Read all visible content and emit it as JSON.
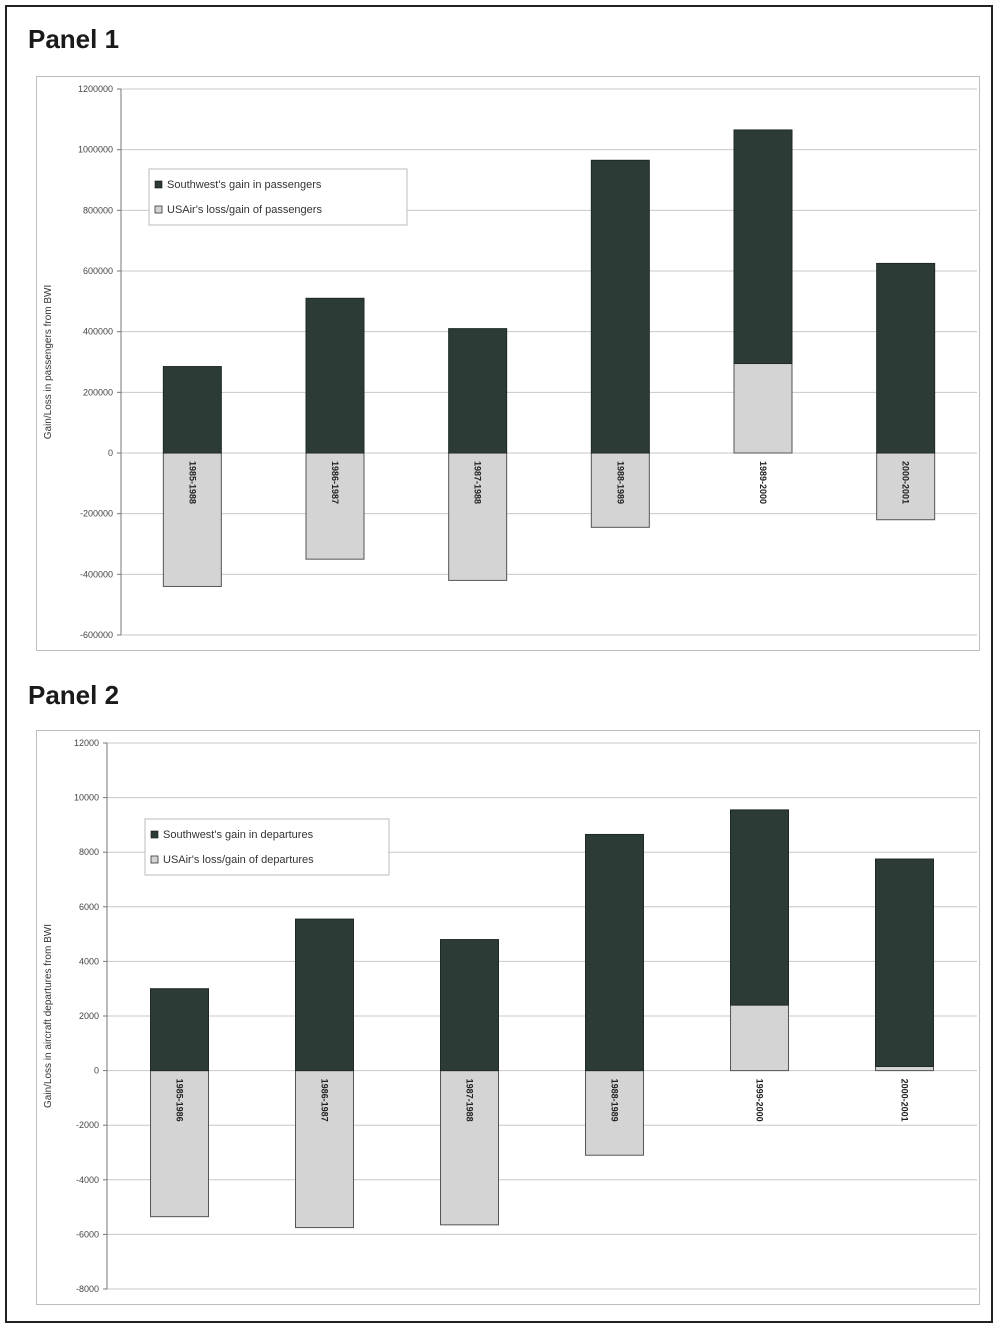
{
  "panels": [
    {
      "title": "Panel 1"
    },
    {
      "title": "Panel 2"
    }
  ],
  "colors": {
    "southwest": "#2d3b37",
    "usair": "#d4d4d4",
    "grid": "#c8c8c8",
    "axis": "#777777"
  },
  "chart_data": [
    {
      "type": "bar",
      "title": "",
      "ylabel": "Gain/Loss in passengers from BWI",
      "ylim": [
        -600000,
        1200000
      ],
      "yticks": [
        "-600000",
        "-400000",
        "-200000",
        "0",
        "200000",
        "400000",
        "600000",
        "800000",
        "1000000",
        "1200000"
      ],
      "categories": [
        "1985-1988",
        "1986-1987",
        "1987-1988",
        "1988-1989",
        "1989-2000",
        "2000-2001"
      ],
      "series": [
        {
          "name": "Southwest's gain in passengers",
          "values": [
            285000,
            510000,
            410000,
            965000,
            1065000,
            625000
          ]
        },
        {
          "name": "USAir's loss/gain of passengers",
          "values": [
            -440000,
            -350000,
            -420000,
            -245000,
            295000,
            -220000
          ]
        }
      ],
      "legend": "top-left",
      "grid": true
    },
    {
      "type": "bar",
      "title": "",
      "ylabel": "Gain/Loss in aircraft departures from BWI",
      "ylim": [
        -8000,
        12000
      ],
      "yticks": [
        "-8000",
        "-6000",
        "-4000",
        "-2000",
        "0",
        "2000",
        "4000",
        "6000",
        "8000",
        "10000",
        "12000"
      ],
      "categories": [
        "1985-1986",
        "1986-1987",
        "1987-1988",
        "1988-1989",
        "1999-2000",
        "2000-2001"
      ],
      "series": [
        {
          "name": "Southwest's gain in departures",
          "values": [
            3000,
            5550,
            4800,
            8650,
            9550,
            7750
          ]
        },
        {
          "name": "USAir's loss/gain of departures",
          "values": [
            -5350,
            -5750,
            -5650,
            -3100,
            2400,
            150
          ]
        }
      ],
      "legend": "top-left",
      "grid": true
    }
  ]
}
